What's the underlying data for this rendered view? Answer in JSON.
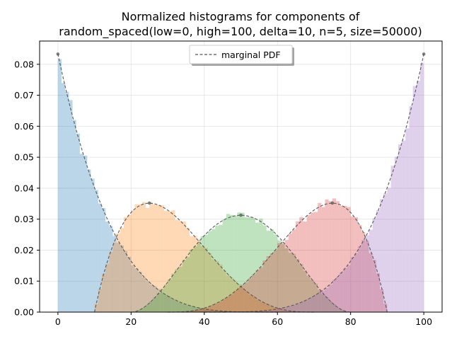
{
  "chart_data": {
    "type": "histogram",
    "title_lines": [
      "Normalized histograms for components of",
      "random_spaced(low=0, high=100, delta=10, n=5, size=50000)"
    ],
    "xlabel": "",
    "ylabel": "",
    "xlim": [
      -5,
      105
    ],
    "ylim": [
      0,
      0.0875
    ],
    "x_ticks": [
      0,
      20,
      40,
      60,
      80,
      100
    ],
    "y_ticks": [
      0.0,
      0.01,
      0.02,
      0.03,
      0.04,
      0.05,
      0.06,
      0.07,
      0.08
    ],
    "y_tick_labels": [
      "0.00",
      "0.01",
      "0.02",
      "0.03",
      "0.04",
      "0.05",
      "0.06",
      "0.07",
      "0.08"
    ],
    "grid": true,
    "legend": {
      "placement": "top-center",
      "entries": [
        {
          "label": "marginal PDF",
          "style": "dashed",
          "color": "#555555"
        }
      ]
    },
    "model": {
      "low": 0,
      "high": 100,
      "delta": 10,
      "n": 5,
      "size": 50000
    },
    "bin_width": 1,
    "series": [
      {
        "component": 1,
        "color": "#1f77b4",
        "support": [
          0,
          60
        ],
        "peak": 0.0833
      },
      {
        "component": 2,
        "color": "#ff7f0e",
        "support": [
          10,
          70
        ],
        "peak": 0.0352
      },
      {
        "component": 3,
        "color": "#2ca02c",
        "support": [
          20,
          80
        ],
        "peak": 0.0313
      },
      {
        "component": 4,
        "color": "#d62728",
        "support": [
          30,
          90
        ],
        "peak": 0.0352
      },
      {
        "component": 5,
        "color": "#9467bd",
        "support": [
          40,
          100
        ],
        "peak": 0.0833
      }
    ],
    "pdf_peaks": [
      {
        "x": 0,
        "y": 0.0833
      },
      {
        "x": 25,
        "y": 0.0352
      },
      {
        "x": 50,
        "y": 0.0313
      },
      {
        "x": 75,
        "y": 0.0352
      },
      {
        "x": 100,
        "y": 0.0833
      }
    ]
  }
}
